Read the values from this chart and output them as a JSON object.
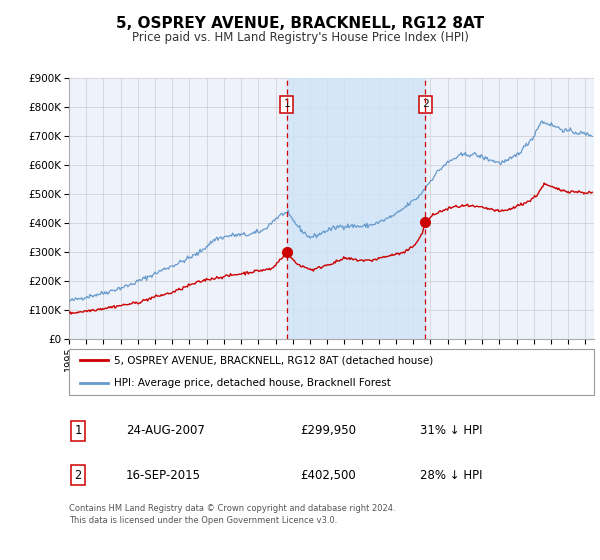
{
  "title": "5, OSPREY AVENUE, BRACKNELL, RG12 8AT",
  "subtitle": "Price paid vs. HM Land Registry's House Price Index (HPI)",
  "title_fontsize": 11,
  "subtitle_fontsize": 8.5,
  "ylim": [
    0,
    900000
  ],
  "xlim_start": 1995.0,
  "xlim_end": 2025.5,
  "yticks": [
    0,
    100000,
    200000,
    300000,
    400000,
    500000,
    600000,
    700000,
    800000,
    900000
  ],
  "ytick_labels": [
    "£0",
    "£100K",
    "£200K",
    "£300K",
    "£400K",
    "£500K",
    "£600K",
    "£700K",
    "£800K",
    "£900K"
  ],
  "xtick_years": [
    1995,
    1996,
    1997,
    1998,
    1999,
    2000,
    2001,
    2002,
    2003,
    2004,
    2005,
    2006,
    2007,
    2008,
    2009,
    2010,
    2011,
    2012,
    2013,
    2014,
    2015,
    2016,
    2017,
    2018,
    2019,
    2020,
    2021,
    2022,
    2023,
    2024,
    2025
  ],
  "grid_color": "#cccccc",
  "background_color": "#ffffff",
  "plot_bg_color": "#eef2fb",
  "red_line_color": "#cc0000",
  "blue_line_color": "#6699cc",
  "shade_color": "#d0e4f7",
  "event1_x": 2007.646,
  "event1_y": 299950,
  "event1_label": "1",
  "event2_x": 2015.708,
  "event2_y": 402500,
  "event2_label": "2",
  "legend_line1": "5, OSPREY AVENUE, BRACKNELL, RG12 8AT (detached house)",
  "legend_line2": "HPI: Average price, detached house, Bracknell Forest",
  "table_row1": [
    "1",
    "24-AUG-2007",
    "£299,950",
    "31% ↓ HPI"
  ],
  "table_row2": [
    "2",
    "16-SEP-2015",
    "£402,500",
    "28% ↓ HPI"
  ],
  "footnote": "Contains HM Land Registry data © Crown copyright and database right 2024.\nThis data is licensed under the Open Government Licence v3.0."
}
